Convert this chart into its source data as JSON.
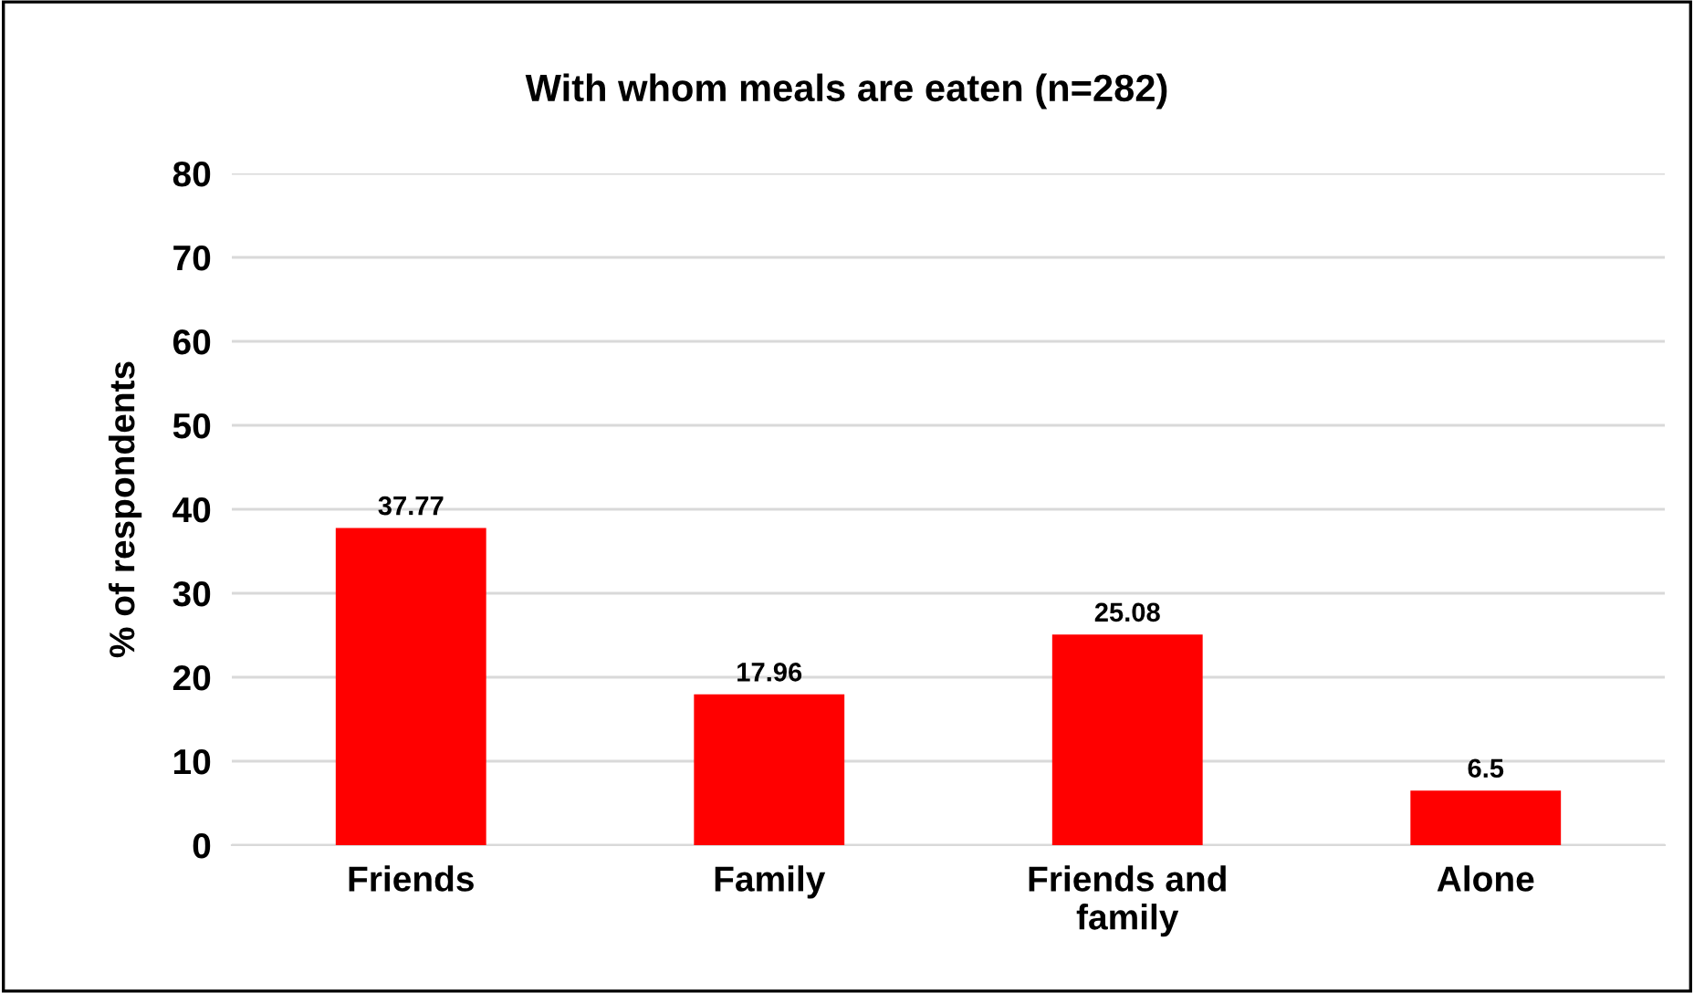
{
  "chart_data": {
    "type": "bar",
    "title": "With whom meals are eaten (n=282)",
    "ylabel": "% of respondents",
    "categories": [
      "Friends",
      "Family",
      "Friends and family",
      "Alone"
    ],
    "values": [
      37.77,
      17.96,
      25.08,
      6.5
    ],
    "color": "#ff0000",
    "ylim": [
      0,
      80
    ],
    "yticks": [
      0,
      10,
      20,
      30,
      40,
      50,
      60,
      70,
      80
    ],
    "grid": "y",
    "data_labels": true
  }
}
